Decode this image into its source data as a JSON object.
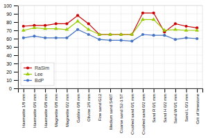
{
  "chart_data": {
    "type": "line",
    "categories": [
      "Haematite 1/8 mm",
      "Haematite 0/6 mm",
      "Haematite 0/8 mm",
      "Magnetite 0/8 mm",
      "Magnetite 0/2 mm",
      "Gabbro 0/8 mm",
      "Olivine 2/6 mm",
      "Fine sand G12",
      "Medium sand S40T",
      "Coarse sand S2-3.5T",
      "Crushed sand 0/1 mm",
      "Crushed sand 0/2 mm",
      "Sand R 0/1 mm",
      "Sand H 0/2 mm",
      "Sand W 0/1 mm",
      "Sand L 0/3 mm",
      "Grit of limestone"
    ],
    "series": [
      {
        "name": "RaSim",
        "color": "#cc0000",
        "marker": "circle",
        "values": [
          75,
          76,
          76,
          78,
          78,
          88,
          78,
          65,
          65,
          65,
          65,
          91,
          91,
          68,
          78,
          75,
          73
        ]
      },
      {
        "name": "Lee",
        "color": "#99cc00",
        "marker": "triangle",
        "values": [
          70,
          73,
          72,
          72,
          71,
          81,
          71,
          65,
          65,
          65,
          65,
          83,
          83,
          70,
          71,
          70,
          70
        ]
      },
      {
        "name": "BdP",
        "color": "#4472c4",
        "marker": "circle",
        "values": [
          61,
          63,
          61,
          61,
          61,
          71,
          65,
          59,
          58,
          58,
          57,
          65,
          64,
          64,
          59,
          61,
          60
        ]
      }
    ],
    "ylim": [
      0,
      100
    ],
    "yticks": [
      0,
      10,
      20,
      30,
      40,
      50,
      60,
      70,
      80,
      90,
      100
    ],
    "grid": true,
    "legend": "lower left"
  }
}
